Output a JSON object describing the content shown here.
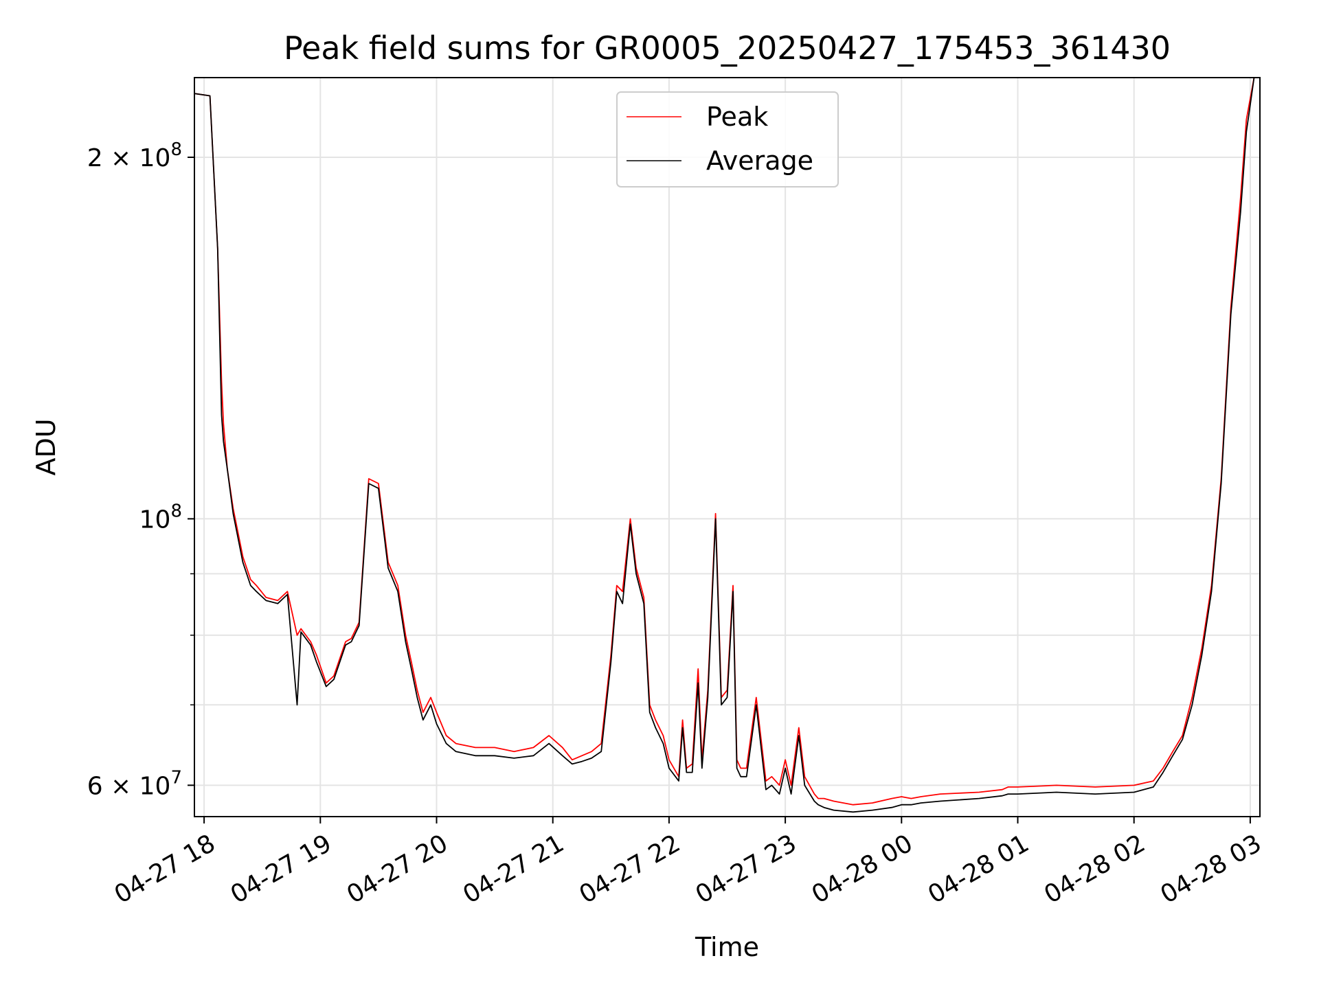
{
  "chart_data": {
    "type": "line",
    "title": "Peak field sums for GR0005_20250427_175453_361430",
    "xlabel": "Time",
    "ylabel": "ADU",
    "y_scale": "log",
    "grid": true,
    "legend_position": "top-center",
    "xlim": [
      "2025-04-27 17:55",
      "2025-04-28 03:05"
    ],
    "ylim": [
      56500000,
      233000000
    ],
    "x_ticks": [
      {
        "time": "2025-04-27 18:00",
        "label": "04-27 18"
      },
      {
        "time": "2025-04-27 19:00",
        "label": "04-27 19"
      },
      {
        "time": "2025-04-27 20:00",
        "label": "04-27 20"
      },
      {
        "time": "2025-04-27 21:00",
        "label": "04-27 21"
      },
      {
        "time": "2025-04-27 22:00",
        "label": "04-27 22"
      },
      {
        "time": "2025-04-27 23:00",
        "label": "04-27 23"
      },
      {
        "time": "2025-04-28 00:00",
        "label": "04-28 00"
      },
      {
        "time": "2025-04-28 01:00",
        "label": "04-28 01"
      },
      {
        "time": "2025-04-28 02:00",
        "label": "04-28 02"
      },
      {
        "time": "2025-04-28 03:00",
        "label": "04-28 03"
      }
    ],
    "y_ticks": [
      {
        "value": 60000000,
        "label_base": "6 × 10",
        "label_exp": "7"
      },
      {
        "value": 100000000,
        "label_base": "10",
        "label_exp": "8"
      },
      {
        "value": 200000000,
        "label_base": "2 × 10",
        "label_exp": "8"
      }
    ],
    "y_minor_grid": [
      70000000,
      80000000,
      90000000
    ],
    "series": [
      {
        "name": "Peak",
        "color": "#ff0000",
        "x": [
          "2025-04-27 17:55",
          "2025-04-27 18:03",
          "2025-04-27 18:07",
          "2025-04-27 18:09",
          "2025-04-27 18:10",
          "2025-04-27 18:12",
          "2025-04-27 18:15",
          "2025-04-27 18:20",
          "2025-04-27 18:24",
          "2025-04-27 18:27",
          "2025-04-27 18:32",
          "2025-04-27 18:38",
          "2025-04-27 18:43",
          "2025-04-27 18:48",
          "2025-04-27 18:50",
          "2025-04-27 18:55",
          "2025-04-27 18:58",
          "2025-04-27 19:03",
          "2025-04-27 19:07",
          "2025-04-27 19:13",
          "2025-04-27 19:16",
          "2025-04-27 19:20",
          "2025-04-27 19:25",
          "2025-04-27 19:30",
          "2025-04-27 19:35",
          "2025-04-27 19:40",
          "2025-04-27 19:44",
          "2025-04-27 19:47",
          "2025-04-27 19:50",
          "2025-04-27 19:53",
          "2025-04-27 19:57",
          "2025-04-27 20:00",
          "2025-04-27 20:05",
          "2025-04-27 20:10",
          "2025-04-27 20:20",
          "2025-04-27 20:30",
          "2025-04-27 20:40",
          "2025-04-27 20:50",
          "2025-04-27 20:58",
          "2025-04-27 21:05",
          "2025-04-27 21:10",
          "2025-04-27 21:15",
          "2025-04-27 21:20",
          "2025-04-27 21:25",
          "2025-04-27 21:30",
          "2025-04-27 21:33",
          "2025-04-27 21:36",
          "2025-04-27 21:40",
          "2025-04-27 21:43",
          "2025-04-27 21:47",
          "2025-04-27 21:50",
          "2025-04-27 21:53",
          "2025-04-27 21:57",
          "2025-04-27 22:00",
          "2025-04-27 22:05",
          "2025-04-27 22:07",
          "2025-04-27 22:09",
          "2025-04-27 22:12",
          "2025-04-27 22:15",
          "2025-04-27 22:17",
          "2025-04-27 22:20",
          "2025-04-27 22:24",
          "2025-04-27 22:27",
          "2025-04-27 22:30",
          "2025-04-27 22:33",
          "2025-04-27 22:35",
          "2025-04-27 22:37",
          "2025-04-27 22:40",
          "2025-04-27 22:45",
          "2025-04-27 22:50",
          "2025-04-27 22:53",
          "2025-04-27 22:57",
          "2025-04-27 23:00",
          "2025-04-27 23:03",
          "2025-04-27 23:07",
          "2025-04-27 23:10",
          "2025-04-27 23:15",
          "2025-04-27 23:17",
          "2025-04-27 23:20",
          "2025-04-27 23:25",
          "2025-04-27 23:35",
          "2025-04-27 23:45",
          "2025-04-27 23:55",
          "2025-04-28 00:00",
          "2025-04-28 00:05",
          "2025-04-28 00:10",
          "2025-04-28 00:20",
          "2025-04-28 00:40",
          "2025-04-28 00:52",
          "2025-04-28 00:55",
          "2025-04-28 01:00",
          "2025-04-28 01:20",
          "2025-04-28 01:40",
          "2025-04-28 02:00",
          "2025-04-28 02:10",
          "2025-04-28 02:15",
          "2025-04-28 02:20",
          "2025-04-28 02:25",
          "2025-04-28 02:30",
          "2025-04-28 02:35",
          "2025-04-28 02:40",
          "2025-04-28 02:45",
          "2025-04-28 02:50",
          "2025-04-28 02:55",
          "2025-04-28 02:58",
          "2025-04-28 03:02"
        ],
        "y": [
          226000000,
          225000000,
          168000000,
          130000000,
          120000000,
          110000000,
          102000000,
          93000000,
          89000000,
          88000000,
          86000000,
          85500000,
          87000000,
          80000000,
          81000000,
          79000000,
          77000000,
          73000000,
          74000000,
          79000000,
          79500000,
          82000000,
          108000000,
          107000000,
          92000000,
          88000000,
          80000000,
          76000000,
          72000000,
          69000000,
          71000000,
          69000000,
          66000000,
          65000000,
          64500000,
          64500000,
          64000000,
          64500000,
          66000000,
          64500000,
          63000000,
          63500000,
          64000000,
          65000000,
          77000000,
          88000000,
          87000000,
          100000000,
          91000000,
          86000000,
          70000000,
          68000000,
          66000000,
          63000000,
          61000000,
          68000000,
          62000000,
          62500000,
          75000000,
          63000000,
          72000000,
          101000000,
          71000000,
          72000000,
          88000000,
          63000000,
          62000000,
          62000000,
          71000000,
          60500000,
          61000000,
          60000000,
          63000000,
          60000000,
          67000000,
          61000000,
          59000000,
          58500000,
          58500000,
          58200000,
          57800000,
          58000000,
          58500000,
          58700000,
          58500000,
          58700000,
          59000000,
          59200000,
          59500000,
          59800000,
          59800000,
          60000000,
          59800000,
          60000000,
          60500000,
          62000000,
          64000000,
          66000000,
          71000000,
          78000000,
          88000000,
          108000000,
          150000000,
          185000000,
          215000000,
          233000000
        ]
      },
      {
        "name": "Average",
        "color": "#000000",
        "x": [
          "2025-04-27 17:55",
          "2025-04-27 18:03",
          "2025-04-27 18:07",
          "2025-04-27 18:09",
          "2025-04-27 18:10",
          "2025-04-27 18:12",
          "2025-04-27 18:15",
          "2025-04-27 18:20",
          "2025-04-27 18:24",
          "2025-04-27 18:27",
          "2025-04-27 18:32",
          "2025-04-27 18:38",
          "2025-04-27 18:43",
          "2025-04-27 18:48",
          "2025-04-27 18:50",
          "2025-04-27 18:55",
          "2025-04-27 18:58",
          "2025-04-27 19:03",
          "2025-04-27 19:07",
          "2025-04-27 19:13",
          "2025-04-27 19:16",
          "2025-04-27 19:20",
          "2025-04-27 19:25",
          "2025-04-27 19:30",
          "2025-04-27 19:35",
          "2025-04-27 19:40",
          "2025-04-27 19:44",
          "2025-04-27 19:47",
          "2025-04-27 19:50",
          "2025-04-27 19:53",
          "2025-04-27 19:57",
          "2025-04-27 20:00",
          "2025-04-27 20:05",
          "2025-04-27 20:10",
          "2025-04-27 20:20",
          "2025-04-27 20:30",
          "2025-04-27 20:40",
          "2025-04-27 20:50",
          "2025-04-27 20:58",
          "2025-04-27 21:05",
          "2025-04-27 21:10",
          "2025-04-27 21:15",
          "2025-04-27 21:20",
          "2025-04-27 21:25",
          "2025-04-27 21:30",
          "2025-04-27 21:33",
          "2025-04-27 21:36",
          "2025-04-27 21:40",
          "2025-04-27 21:43",
          "2025-04-27 21:47",
          "2025-04-27 21:50",
          "2025-04-27 21:53",
          "2025-04-27 21:57",
          "2025-04-27 22:00",
          "2025-04-27 22:05",
          "2025-04-27 22:07",
          "2025-04-27 22:09",
          "2025-04-27 22:12",
          "2025-04-27 22:15",
          "2025-04-27 22:17",
          "2025-04-27 22:20",
          "2025-04-27 22:24",
          "2025-04-27 22:27",
          "2025-04-27 22:30",
          "2025-04-27 22:33",
          "2025-04-27 22:35",
          "2025-04-27 22:37",
          "2025-04-27 22:40",
          "2025-04-27 22:45",
          "2025-04-27 22:50",
          "2025-04-27 22:53",
          "2025-04-27 22:57",
          "2025-04-27 23:00",
          "2025-04-27 23:03",
          "2025-04-27 23:07",
          "2025-04-27 23:10",
          "2025-04-27 23:15",
          "2025-04-27 23:17",
          "2025-04-27 23:20",
          "2025-04-27 23:25",
          "2025-04-27 23:35",
          "2025-04-27 23:45",
          "2025-04-27 23:55",
          "2025-04-28 00:00",
          "2025-04-28 00:05",
          "2025-04-28 00:10",
          "2025-04-28 00:20",
          "2025-04-28 00:40",
          "2025-04-28 00:52",
          "2025-04-28 00:55",
          "2025-04-28 01:00",
          "2025-04-28 01:20",
          "2025-04-28 01:40",
          "2025-04-28 02:00",
          "2025-04-28 02:10",
          "2025-04-28 02:15",
          "2025-04-28 02:20",
          "2025-04-28 02:25",
          "2025-04-28 02:30",
          "2025-04-28 02:35",
          "2025-04-28 02:40",
          "2025-04-28 02:45",
          "2025-04-28 02:50",
          "2025-04-28 02:55",
          "2025-04-28 02:58",
          "2025-04-28 03:02"
        ],
        "y": [
          226000000,
          225000000,
          168000000,
          122000000,
          116000000,
          110000000,
          101000000,
          92000000,
          88000000,
          87000000,
          85500000,
          85000000,
          86500000,
          70000000,
          80500000,
          78500000,
          76000000,
          72500000,
          73500000,
          78500000,
          79000000,
          81500000,
          107000000,
          106000000,
          91000000,
          87000000,
          79000000,
          75000000,
          71000000,
          68000000,
          70000000,
          67500000,
          65000000,
          64000000,
          63500000,
          63500000,
          63200000,
          63500000,
          65000000,
          63500000,
          62500000,
          62800000,
          63200000,
          64000000,
          76000000,
          87000000,
          85000000,
          99000000,
          90000000,
          85000000,
          69000000,
          67000000,
          65000000,
          62000000,
          60500000,
          67000000,
          61500000,
          61500000,
          73000000,
          62000000,
          71000000,
          100000000,
          70000000,
          71000000,
          87000000,
          62000000,
          61000000,
          61000000,
          70000000,
          59500000,
          60000000,
          59000000,
          62000000,
          59000000,
          66000000,
          60000000,
          58200000,
          57800000,
          57500000,
          57200000,
          57000000,
          57200000,
          57500000,
          57800000,
          57800000,
          58000000,
          58200000,
          58500000,
          58800000,
          59000000,
          59000000,
          59200000,
          59000000,
          59200000,
          59800000,
          61500000,
          63500000,
          65500000,
          70000000,
          77000000,
          87000000,
          107000000,
          148000000,
          180000000,
          210000000,
          233000000
        ]
      }
    ]
  }
}
